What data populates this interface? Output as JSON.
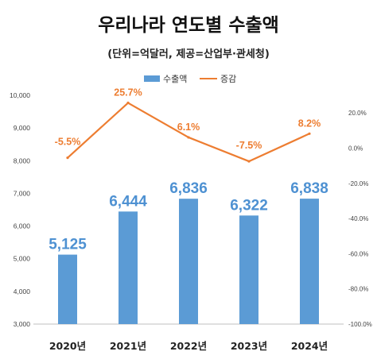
{
  "chart_data": {
    "type": "bar+line",
    "title": "우리나라 연도별 수출액",
    "subtitle": "(단위=억달러, 제공=산업부·관세청)",
    "categories": [
      "2020년",
      "2021년",
      "2022년",
      "2023년",
      "2024년"
    ],
    "series": [
      {
        "name": "수출액",
        "type": "bar",
        "axis": "left",
        "color": "#5b9bd5",
        "values": [
          5125,
          6444,
          6836,
          6322,
          6838
        ],
        "labels": [
          "5,125",
          "6,444",
          "6,836",
          "6,322",
          "6,838"
        ]
      },
      {
        "name": "증감",
        "type": "line",
        "axis": "right",
        "color": "#ed7d31",
        "values": [
          -5.5,
          25.7,
          6.1,
          -7.5,
          8.2
        ],
        "labels": [
          "-5.5%",
          "25.7%",
          "6.1%",
          "-7.5%",
          "8.2%"
        ]
      }
    ],
    "y_left": {
      "range": [
        3000,
        10000
      ],
      "ticks": [
        "3,000",
        "4,000",
        "5,000",
        "6,000",
        "7,000",
        "8,000",
        "9,000",
        "10,000"
      ]
    },
    "y_right": {
      "range": [
        -100,
        30
      ],
      "ticks": [
        "-100.0%",
        "-80.0%",
        "-60.0%",
        "-40.0%",
        "-20.0%",
        "0.0%",
        "20.0%"
      ]
    },
    "legend_position": "top"
  }
}
